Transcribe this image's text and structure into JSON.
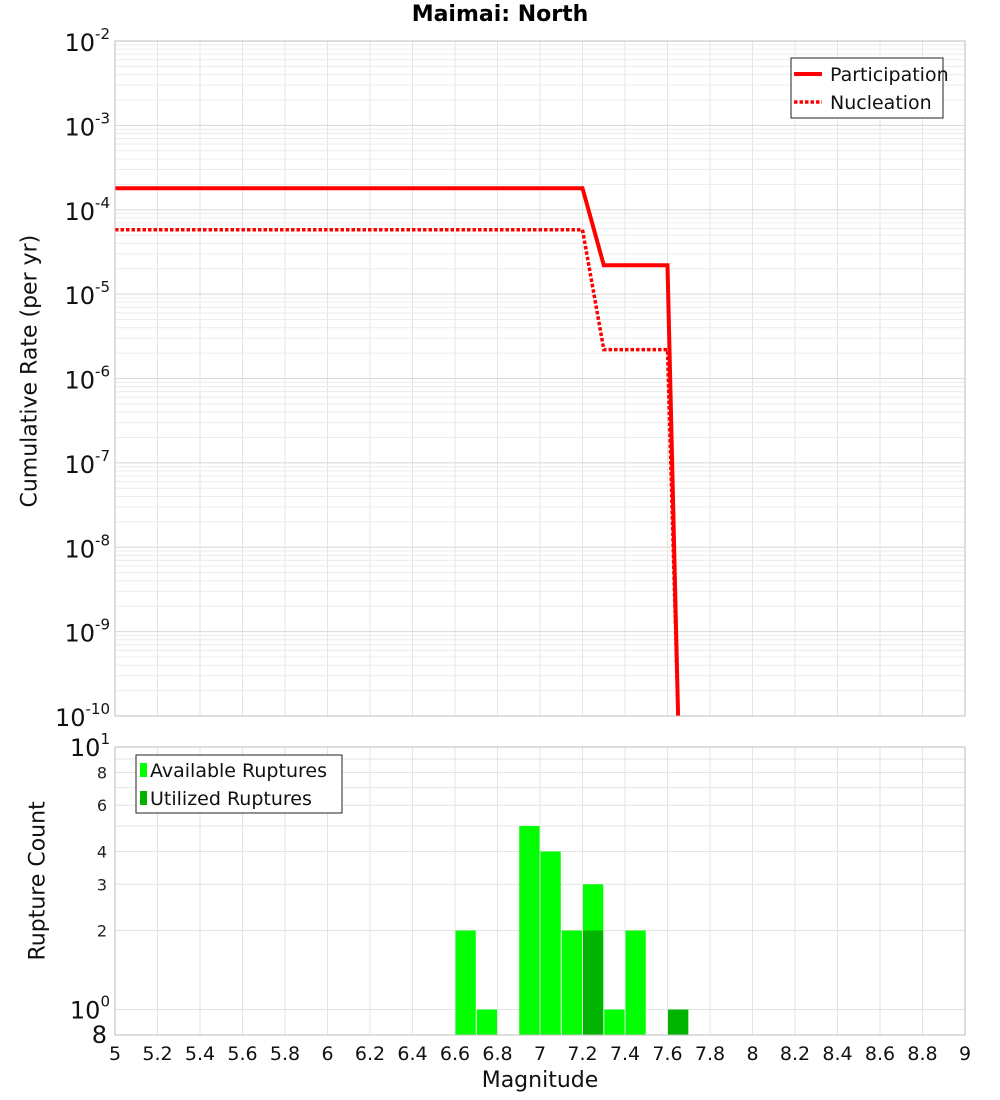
{
  "chart_data": [
    {
      "type": "line",
      "title": "Maimai: North",
      "ylabel": "Cumulative Rate (per yr)",
      "xlim": [
        5,
        9
      ],
      "ylim": [
        1e-10,
        0.01
      ],
      "yscale": "log",
      "y_tick_exponents": [
        "-2",
        "-3",
        "-4",
        "-5",
        "-6",
        "-7",
        "-8",
        "-9",
        "-10"
      ],
      "y_tick_base": "10",
      "grid": true,
      "legend": "top-right",
      "series": [
        {
          "name": "Participation",
          "color": "#ff0000",
          "style": "solid",
          "x": [
            5.0,
            7.2,
            7.3,
            7.6,
            7.65
          ],
          "y": [
            0.00018,
            0.00018,
            2.2e-05,
            2.2e-05,
            1e-10
          ]
        },
        {
          "name": "Nucleation",
          "color": "#ff0000",
          "style": "dotted",
          "x": [
            5.0,
            7.2,
            7.3,
            7.6,
            7.65
          ],
          "y": [
            5.8e-05,
            5.8e-05,
            2.2e-06,
            2.2e-06,
            1e-10
          ]
        }
      ]
    },
    {
      "type": "bar",
      "ylabel": "Rupture Count",
      "xlabel": "Magnitude",
      "xlim": [
        5,
        9
      ],
      "ylim": [
        0.8,
        10
      ],
      "yscale": "log",
      "grid": true,
      "legend": "top-left",
      "x_ticks": [
        "5",
        "5.2",
        "5.4",
        "5.6",
        "5.8",
        "6",
        "6.2",
        "6.4",
        "6.6",
        "6.8",
        "7",
        "7.2",
        "7.4",
        "7.6",
        "7.8",
        "8",
        "8.2",
        "8.4",
        "8.6",
        "8.8",
        "9"
      ],
      "y_ticks_major": [
        {
          "value": 10,
          "base": "10",
          "exp": "1"
        },
        {
          "value": 1,
          "base": "10",
          "exp": "0"
        }
      ],
      "y_ticks_minor": [
        {
          "value": 8,
          "label": "8"
        },
        {
          "value": 6,
          "label": "6"
        },
        {
          "value": 4,
          "label": "4"
        },
        {
          "value": 3,
          "label": "3"
        },
        {
          "value": 2,
          "label": "2"
        }
      ],
      "y_bottom_label": "8",
      "bin_width": 0.1,
      "series": [
        {
          "name": "Available Ruptures",
          "color": "#00ff00",
          "x": [
            6.65,
            6.75,
            6.95,
            7.05,
            7.15,
            7.25,
            7.35,
            7.45,
            7.65
          ],
          "values": [
            2,
            1,
            5,
            4,
            2,
            3,
            1,
            2,
            1
          ]
        },
        {
          "name": "Utilized Ruptures",
          "color": "#00b400",
          "x": [
            7.25,
            7.65
          ],
          "values": [
            2,
            1
          ]
        }
      ]
    }
  ]
}
